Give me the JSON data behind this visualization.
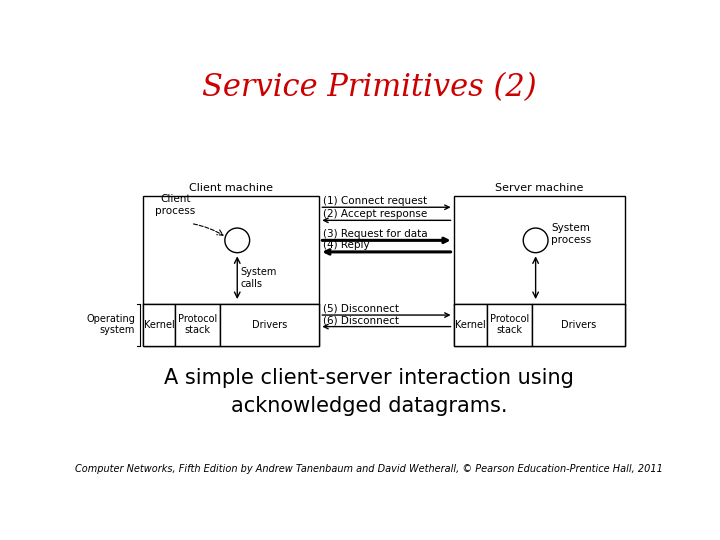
{
  "title": "Service Primitives (2)",
  "title_color": "#cc0000",
  "title_fontsize": 22,
  "subtitle": "A simple client-server interaction using\nacknowledged datagrams.",
  "subtitle_fontsize": 15,
  "footer": "Computer Networks, Fifth Edition by Andrew Tanenbaum and David Wetherall, © Pearson Education-Prentice Hall, 2011",
  "footer_fontsize": 7,
  "bg_color": "#ffffff",
  "diagram": {
    "client_machine_label": "Client machine",
    "server_machine_label": "Server machine",
    "client_process_label": "Client\nprocess",
    "server_process_label": "System\nprocess",
    "system_calls_label": "System\ncalls",
    "operating_system_label": "Operating\nsystem",
    "kernel_label_left": "Kernel",
    "protocol_stack_label_left": "Protocol\nstack",
    "drivers_label_left": "Drivers",
    "kernel_label_right": "Kernel",
    "protocol_stack_label_right": "Protocol\nstack",
    "drivers_label_right": "Drivers",
    "arrows": [
      {
        "label": "(1) Connect request",
        "direction": "right",
        "bold": false
      },
      {
        "label": "(2) Accept response",
        "direction": "left",
        "bold": false
      },
      {
        "label": "(3) Request for data",
        "direction": "right",
        "bold": true
      },
      {
        "label": "(4) Reply",
        "direction": "left",
        "bold": true
      },
      {
        "label": "(5) Disconnect",
        "direction": "right",
        "bold": false
      },
      {
        "label": "(6) Disconnect",
        "direction": "left",
        "bold": false
      }
    ]
  }
}
